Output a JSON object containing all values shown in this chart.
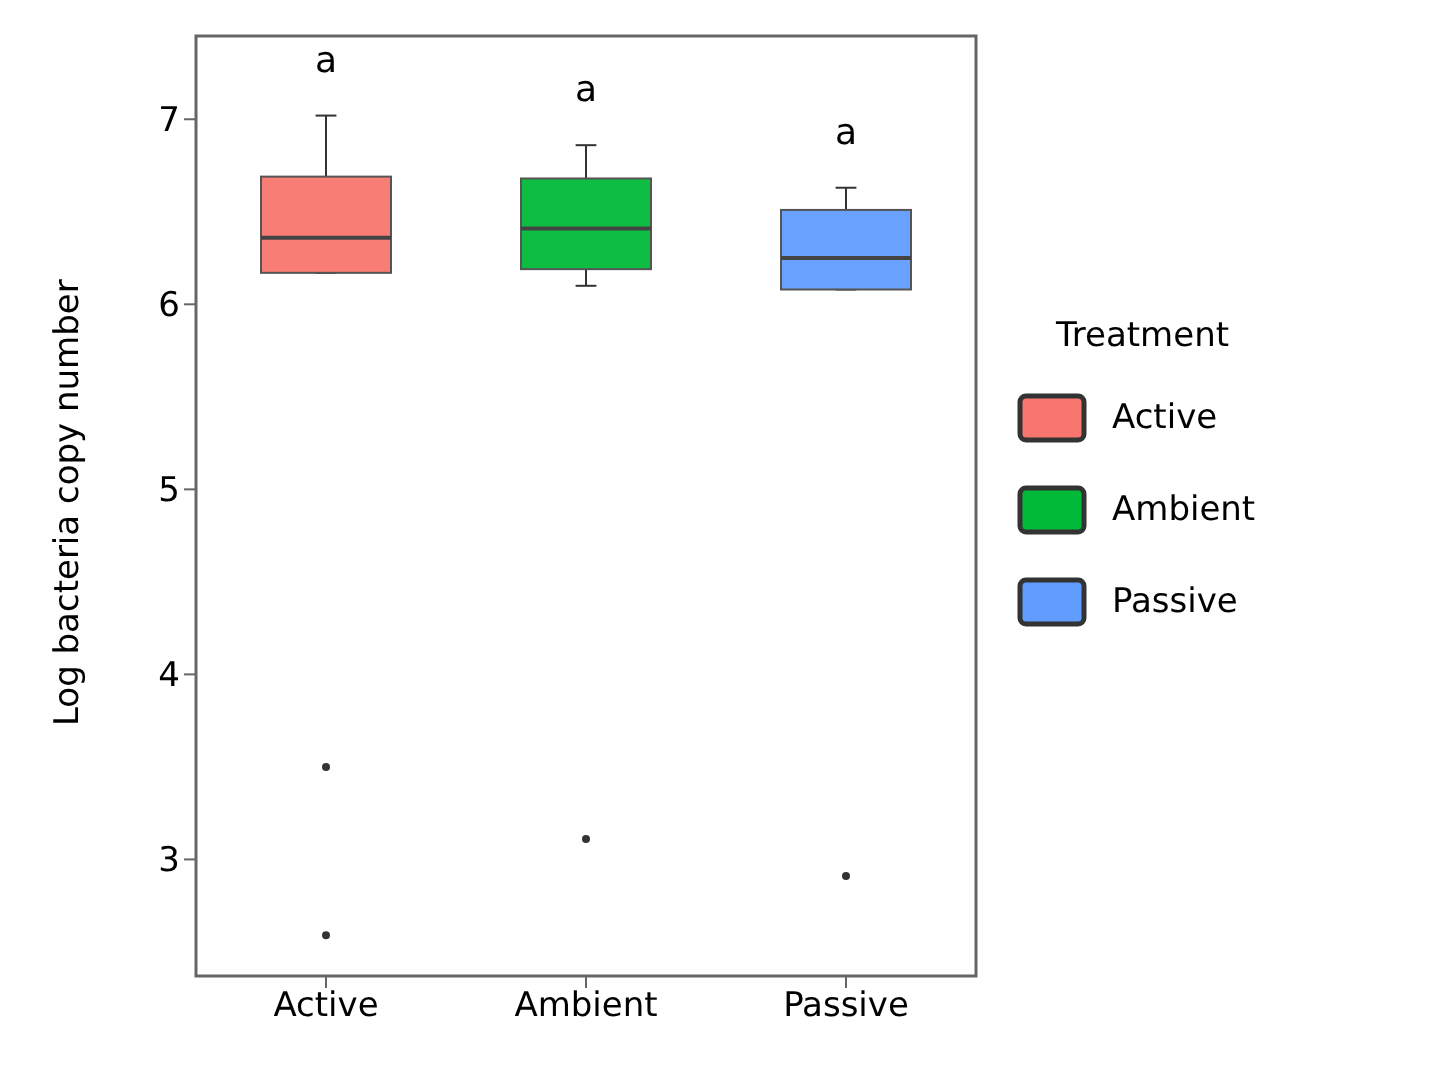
{
  "chart_data": {
    "type": "box",
    "categories": [
      "Active",
      "Ambient",
      "Passive"
    ],
    "series": [
      {
        "name": "Active",
        "color": "#f8766d",
        "boxes": [
          {
            "low": 6.17,
            "q1": 6.17,
            "median": 6.36,
            "q3": 6.69,
            "high": 7.02,
            "outliers": [
              3.5,
              2.59
            ]
          },
          null,
          null
        ]
      },
      {
        "name": "Ambient",
        "color": "#00ba38",
        "boxes": [
          null,
          {
            "low": 6.1,
            "q1": 6.19,
            "median": 6.41,
            "q3": 6.68,
            "high": 6.86,
            "outliers": [
              3.11
            ]
          },
          null
        ]
      },
      {
        "name": "Passive",
        "color": "#619cff",
        "boxes": [
          null,
          null,
          {
            "low": 6.08,
            "q1": 6.08,
            "median": 6.25,
            "q3": 6.51,
            "high": 6.63,
            "outliers": [
              2.91
            ]
          }
        ]
      }
    ],
    "ylabel": "Log bacteria copy number",
    "legend_title": "Treatment",
    "legend": "right",
    "grid": false,
    "ylim": [
      2.37,
      7.45
    ],
    "yticks": [
      3,
      4,
      5,
      6,
      7
    ],
    "annotations": [
      "a",
      "a",
      "a"
    ]
  }
}
